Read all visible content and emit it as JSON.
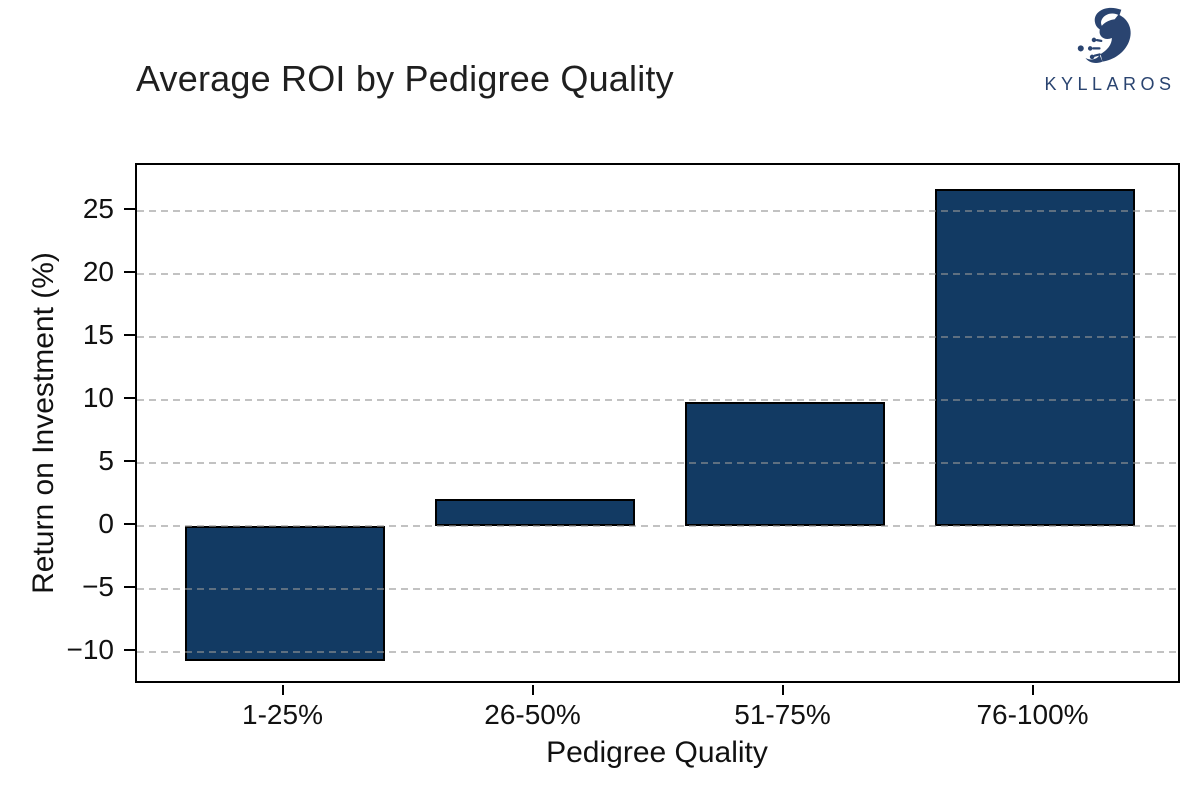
{
  "header": {
    "title": "Average ROI by Pedigree Quality"
  },
  "logo": {
    "text": "KYLLAROS",
    "color": "#2a4470"
  },
  "chart_data": {
    "type": "bar",
    "title": "Average ROI by Pedigree Quality",
    "categories": [
      "1-25%",
      "26-50%",
      "51-75%",
      "76-100%"
    ],
    "values": [
      -10.7,
      2.2,
      9.9,
      26.8
    ],
    "xlabel": "Pedigree Quality",
    "ylabel": "Return on Investment (%)",
    "ylim": [
      -12.58,
      28.68
    ],
    "xlim": [
      -0.59,
      3.59
    ],
    "yticks": [
      -10,
      -5,
      0,
      5,
      10,
      15,
      20,
      25
    ],
    "bar_width": 0.8,
    "bar_color": "#123a63",
    "bar_edge_color": "#000000",
    "grid": true,
    "grid_style": "dashed",
    "grid_color": "#969696",
    "legend": "none",
    "background": "#ffffff"
  }
}
